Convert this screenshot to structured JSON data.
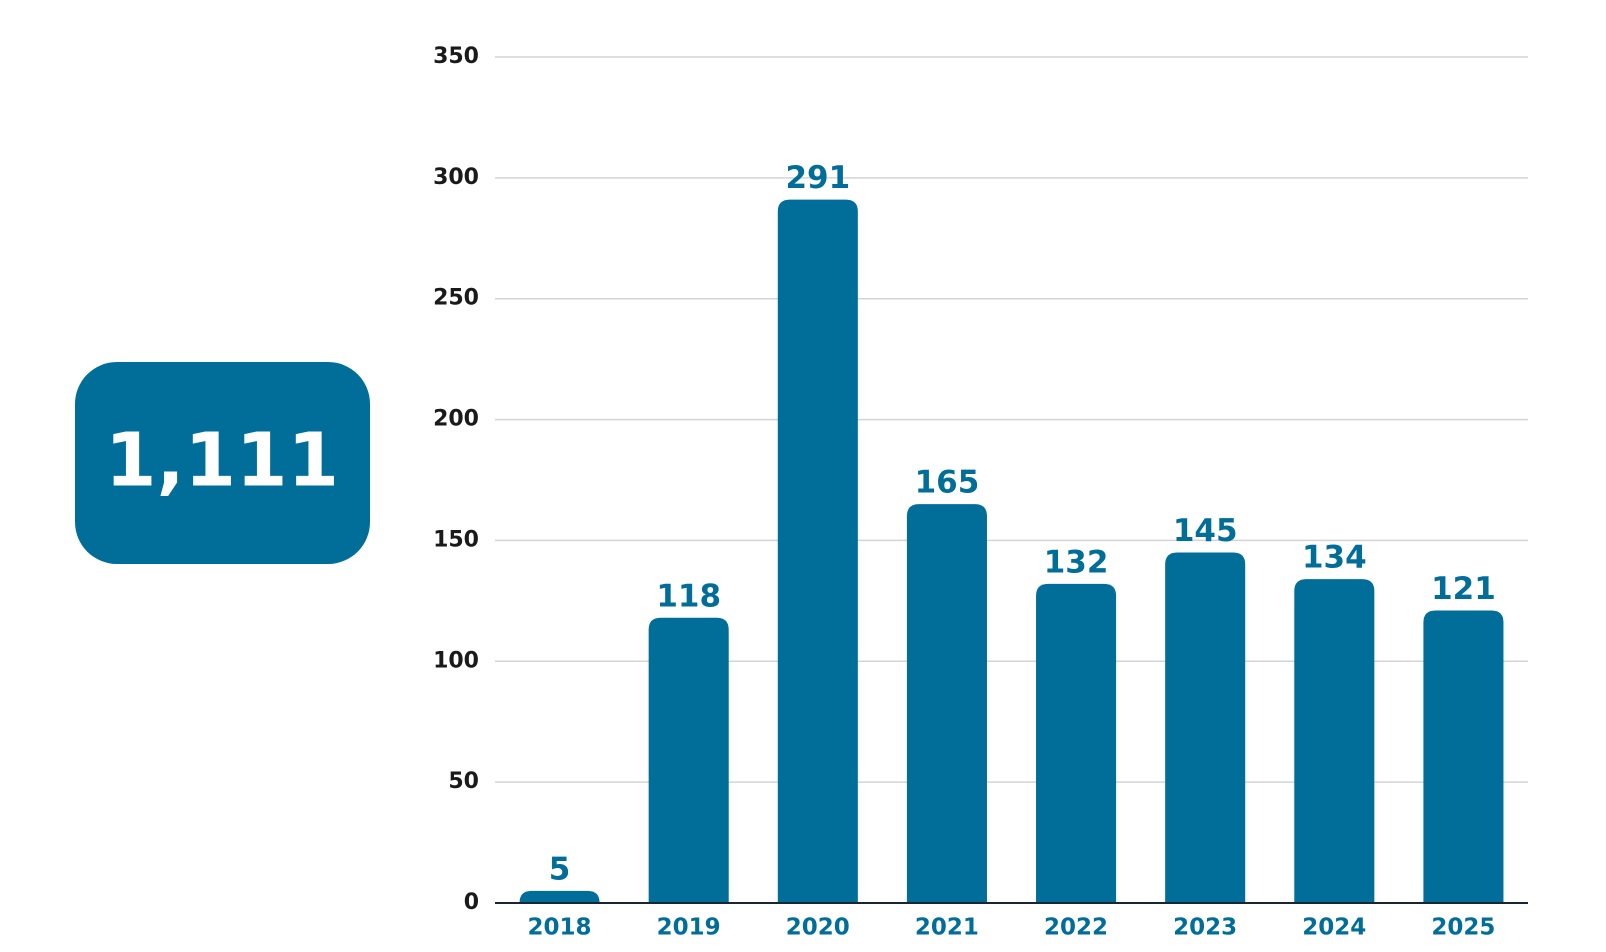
{
  "chart_data": {
    "type": "bar",
    "annotation": "1,111",
    "categories": [
      "2018",
      "2019",
      "2020",
      "2021",
      "2022",
      "2023",
      "2024",
      "2025"
    ],
    "values": [
      5,
      118,
      291,
      165,
      132,
      145,
      134,
      121
    ],
    "color": "#006e99",
    "ylim": [
      0,
      350
    ],
    "yticks": [
      0,
      50,
      100,
      150,
      200,
      250,
      300,
      350
    ],
    "grid": true
  }
}
